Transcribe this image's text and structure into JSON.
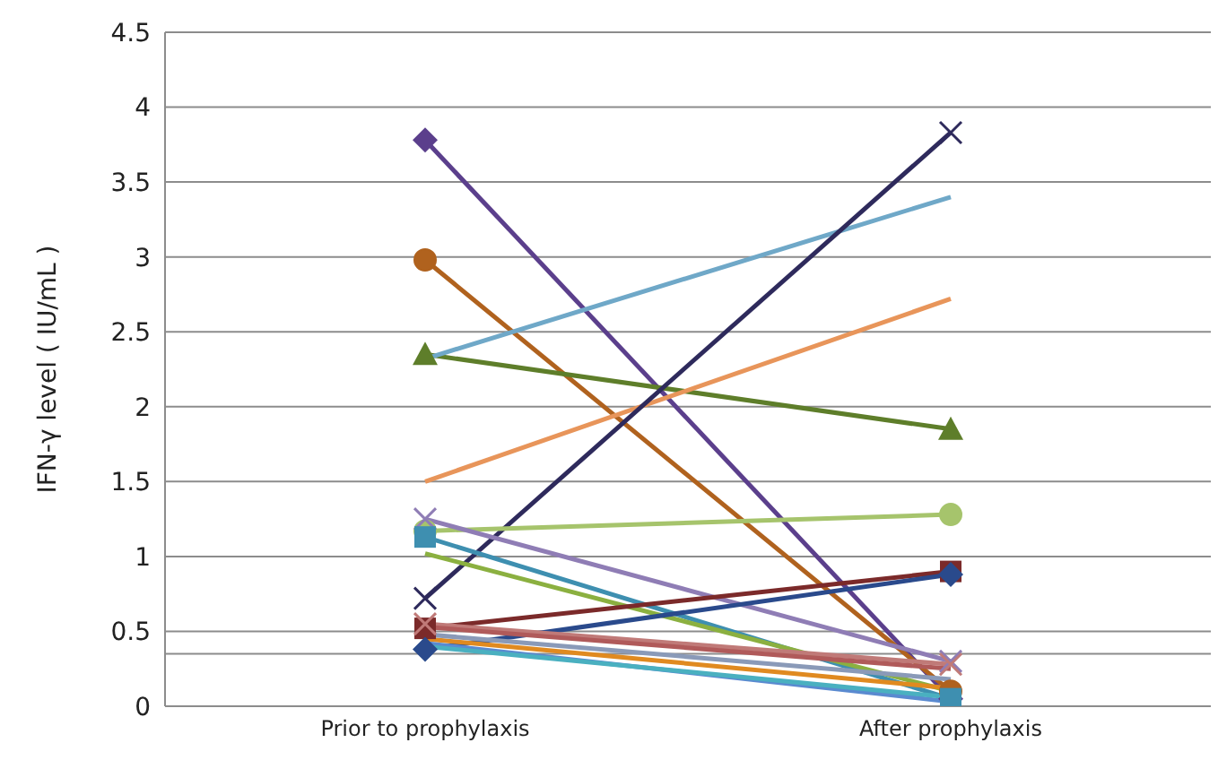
{
  "chart_data": {
    "type": "line",
    "ylabel": "IFN-γ level ( IU/mL )",
    "categories": [
      "Prior to prophylaxis",
      "After prophylaxis"
    ],
    "ylim": [
      0,
      4.5
    ],
    "yticks": [
      0,
      0.5,
      1,
      1.5,
      2,
      2.5,
      3,
      3.5,
      4,
      4.5
    ],
    "grid": "y",
    "ref_lines": [
      {
        "axis": "y",
        "value": 0.35,
        "color": "#8c8c8c"
      }
    ],
    "series": [
      {
        "color": "#5b3f8c",
        "marker": "diamond",
        "values": [
          3.78,
          0.05
        ]
      },
      {
        "color": "#b0621e",
        "marker": "circle",
        "values": [
          2.98,
          0.1
        ]
      },
      {
        "color": "#5e7e2a",
        "marker": "triangle",
        "values": [
          2.35,
          1.85
        ]
      },
      {
        "color": "#6fa8c8",
        "marker": "none",
        "values": [
          2.32,
          3.4
        ]
      },
      {
        "color": "#e8955a",
        "marker": "none",
        "values": [
          1.5,
          2.72
        ]
      },
      {
        "color": "#2e2a5c",
        "marker": "cross",
        "values": [
          0.72,
          3.83
        ]
      },
      {
        "color": "#a6c46c",
        "marker": "circle",
        "values": [
          1.17,
          1.28
        ]
      },
      {
        "color": "#8f7db5",
        "marker": "cross",
        "values": [
          1.25,
          0.3
        ]
      },
      {
        "color": "#3e8fb0",
        "marker": "square",
        "values": [
          1.13,
          0.05
        ]
      },
      {
        "color": "#8bb040",
        "marker": "none",
        "values": [
          1.02,
          0.1
        ]
      },
      {
        "color": "#7b2a2a",
        "marker": "square",
        "values": [
          0.52,
          0.9
        ]
      },
      {
        "color": "#2a4a8c",
        "marker": "diamond",
        "values": [
          0.38,
          0.88
        ]
      },
      {
        "color": "#c07a78",
        "marker": "cross",
        "values": [
          0.55,
          0.28
        ]
      },
      {
        "color": "#b05a5a",
        "marker": "none",
        "values": [
          0.53,
          0.25
        ]
      },
      {
        "color": "#e08a20",
        "marker": "none",
        "values": [
          0.45,
          0.12
        ]
      },
      {
        "color": "#5a8ad0",
        "marker": "none",
        "values": [
          0.42,
          0.03
        ]
      },
      {
        "color": "#8a9ab8",
        "marker": "none",
        "values": [
          0.48,
          0.18
        ]
      },
      {
        "color": "#4ab0c0",
        "marker": "none",
        "values": [
          0.4,
          0.06
        ]
      }
    ]
  }
}
